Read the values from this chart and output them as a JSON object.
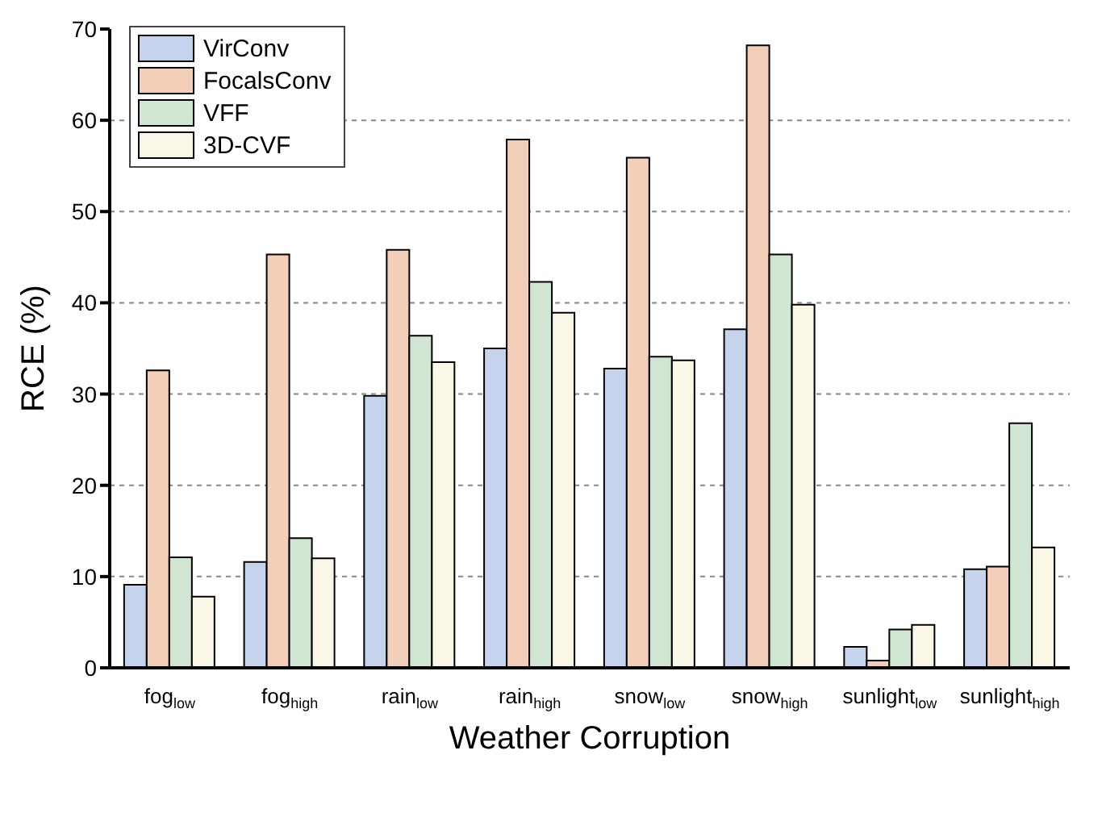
{
  "chart_data": {
    "type": "bar",
    "xlabel": "Weather Corruption",
    "ylabel": "RCE (%)",
    "categories": [
      "fog$_{low}$",
      "fog$_{high}$",
      "rain$_{low}$",
      "rain$_{high}$",
      "snow$_{low}$",
      "snow$_{high}$",
      "sunlight$_{low}$",
      "sunlight$_{high}$"
    ],
    "series": [
      {
        "name": "VirConv",
        "color": "#c5d3ec",
        "values": [
          9.1,
          11.6,
          29.8,
          35.0,
          32.8,
          37.1,
          2.3,
          10.8
        ]
      },
      {
        "name": "FocalsConv",
        "color": "#f3cfb9",
        "values": [
          32.6,
          45.3,
          45.8,
          57.9,
          55.9,
          68.2,
          0.8,
          11.1
        ]
      },
      {
        "name": "VFF",
        "color": "#d0e6d2",
        "values": [
          12.1,
          14.2,
          36.4,
          42.3,
          34.1,
          45.3,
          4.2,
          26.8
        ]
      },
      {
        "name": "3D-CVF",
        "color": "#fbf7e6",
        "values": [
          7.8,
          12.0,
          33.5,
          38.9,
          33.7,
          39.8,
          4.7,
          13.2
        ]
      }
    ],
    "ylim": [
      0,
      70
    ],
    "yticks": [
      0,
      10,
      20,
      30,
      40,
      50,
      60,
      70
    ],
    "grid": "y",
    "legend": "top left"
  }
}
